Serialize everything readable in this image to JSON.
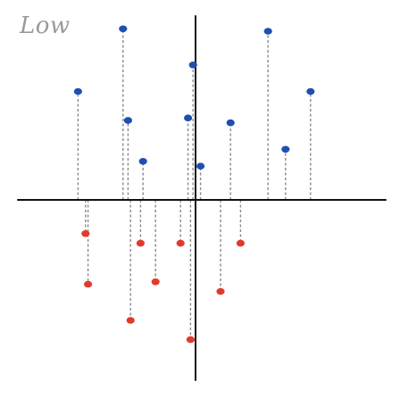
{
  "title": "Low",
  "colors": {
    "positive": "#1f4fb0",
    "negative": "#e03b2a",
    "axis": "#111111",
    "stem": "#8a8a8a",
    "label": "#9a9a9a"
  },
  "chart_data": {
    "type": "scatter",
    "positive_points": [
      {
        "x": -4.7,
        "y": 4.5
      },
      {
        "x": -2.9,
        "y": 7.1
      },
      {
        "x": -2.7,
        "y": 3.3
      },
      {
        "x": -2.1,
        "y": 1.6
      },
      {
        "x": -0.3,
        "y": 3.4
      },
      {
        "x": -0.1,
        "y": 5.6
      },
      {
        "x": 0.2,
        "y": 1.4
      },
      {
        "x": 1.4,
        "y": 3.2
      },
      {
        "x": 2.9,
        "y": 7.0
      },
      {
        "x": 3.6,
        "y": 2.1
      },
      {
        "x": 4.6,
        "y": 4.5
      }
    ],
    "negative_points": [
      {
        "x": -4.4,
        "y": -1.4
      },
      {
        "x": -4.3,
        "y": -3.5
      },
      {
        "x": -2.6,
        "y": -5.0
      },
      {
        "x": -2.2,
        "y": -1.8
      },
      {
        "x": -1.6,
        "y": -3.4
      },
      {
        "x": -0.6,
        "y": -1.8
      },
      {
        "x": -0.2,
        "y": -5.8
      },
      {
        "x": 1.0,
        "y": -3.8
      },
      {
        "x": 1.8,
        "y": -1.8
      }
    ]
  }
}
